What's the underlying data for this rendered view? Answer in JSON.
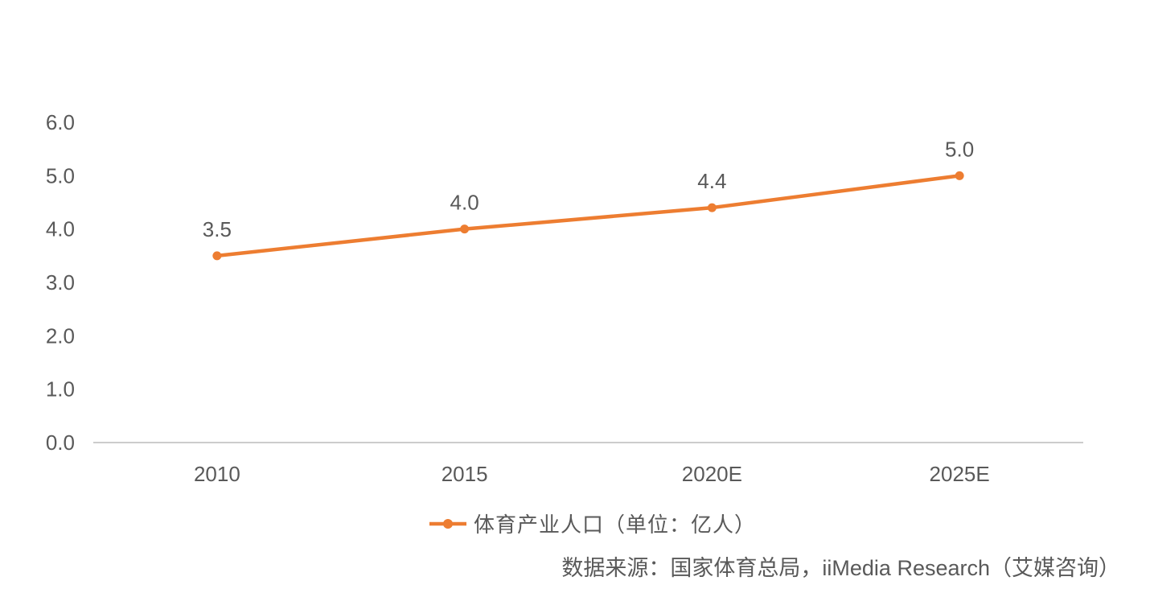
{
  "chart_data": {
    "type": "line",
    "categories": [
      "2010",
      "2015",
      "2020E",
      "2025E"
    ],
    "series": [
      {
        "name": "体育产业人口（单位：亿人）",
        "values": [
          3.5,
          4.0,
          4.4,
          5.0
        ],
        "data_labels": [
          "3.5",
          "4.0",
          "4.4",
          "5.0"
        ]
      }
    ],
    "title": "",
    "xlabel": "",
    "ylabel": "",
    "ylim": [
      0.0,
      6.0
    ],
    "ytick_labels": [
      "6.0",
      "5.0",
      "4.0",
      "3.0",
      "2.0",
      "1.0",
      "0.0"
    ],
    "ytick_values": [
      6.0,
      5.0,
      4.0,
      3.0,
      2.0,
      1.0,
      0.0
    ],
    "grid": false,
    "legend_position": "bottom",
    "colors": {
      "line": "#ED7D31",
      "marker": "#ED7D31",
      "axis_line": "#CCCCCC",
      "label_text": "#595959"
    }
  },
  "legend": {
    "label": "体育产业人口（单位：亿人）"
  },
  "source_note": "数据来源：国家体育总局，iiMedia Research（艾媒咨询）"
}
